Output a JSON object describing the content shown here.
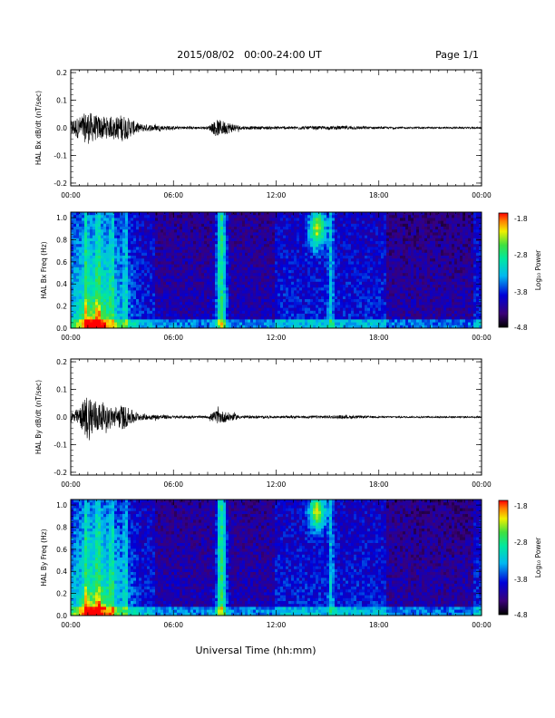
{
  "header": {
    "title": "2015/08/02   00:00-24:00 UT",
    "page": "Page 1/1"
  },
  "x_axis_label": "Universal Time (hh:mm)",
  "colorbar": {
    "label": "Log₁₀ Power",
    "ticks": [
      "-1.8",
      "-2.8",
      "-3.8",
      "-4.8"
    ]
  },
  "chart_data": [
    {
      "type": "line",
      "ylabel": "HAL Bx dB/dt (nT/sec)",
      "xlim": [
        "00:00",
        "24:00"
      ],
      "ylim": [
        -0.21,
        0.21
      ],
      "yticks": [
        "0.2",
        "0.1",
        "0.0",
        "-0.1",
        "-0.2"
      ],
      "xticks": [
        "00:00",
        "06:00",
        "12:00",
        "18:00",
        "00:00"
      ],
      "amplitude_envelope_hours": [
        0,
        0.5,
        1.0,
        1.5,
        2.0,
        2.5,
        3.0,
        4.0,
        6.0,
        8.0,
        8.5,
        9.0,
        10.0,
        12.0,
        14.0,
        15.0,
        16.0,
        18.0,
        20.0,
        22.0,
        24.0
      ],
      "amplitude_envelope_nT_per_s": [
        0.03,
        0.04,
        0.06,
        0.045,
        0.04,
        0.035,
        0.05,
        0.015,
        0.006,
        0.004,
        0.03,
        0.025,
        0.006,
        0.005,
        0.006,
        0.006,
        0.007,
        0.004,
        0.003,
        0.003,
        0.003
      ]
    },
    {
      "type": "heatmap",
      "ylabel": "HAL Bx Freq (Hz)",
      "xlim": [
        "00:00",
        "24:00"
      ],
      "ylim": [
        0,
        1.05
      ],
      "yticks": [
        "1.0",
        "0.8",
        "0.6",
        "0.4",
        "0.2",
        "0.0"
      ],
      "xticks": [
        "00:00",
        "06:00",
        "12:00",
        "18:00",
        "00:00"
      ],
      "zlim": [
        -4.8,
        -1.8
      ],
      "z_label": "Log₁₀ Power"
    },
    {
      "type": "line",
      "ylabel": "HAL By dB/dt (nT/sec)",
      "xlim": [
        "00:00",
        "24:00"
      ],
      "ylim": [
        -0.21,
        0.21
      ],
      "yticks": [
        "0.2",
        "0.1",
        "0.0",
        "-0.1",
        "-0.2"
      ],
      "xticks": [
        "00:00",
        "06:00",
        "12:00",
        "18:00",
        "00:00"
      ],
      "amplitude_envelope_hours": [
        0,
        0.5,
        1.0,
        1.5,
        2.0,
        2.5,
        3.0,
        4.0,
        6.0,
        8.0,
        8.5,
        9.0,
        10.0,
        12.0,
        14.0,
        15.0,
        16.0,
        18.0,
        20.0,
        22.0,
        24.0
      ],
      "amplitude_envelope_nT_per_s": [
        0.02,
        0.03,
        0.09,
        0.06,
        0.04,
        0.035,
        0.045,
        0.012,
        0.005,
        0.004,
        0.025,
        0.02,
        0.005,
        0.004,
        0.005,
        0.005,
        0.006,
        0.003,
        0.003,
        0.003,
        0.003
      ]
    },
    {
      "type": "heatmap",
      "ylabel": "HAL By Freq (Hz)",
      "xlim": [
        "00:00",
        "24:00"
      ],
      "ylim": [
        0,
        1.05
      ],
      "yticks": [
        "1.0",
        "0.8",
        "0.6",
        "0.4",
        "0.2",
        "0.0"
      ],
      "xticks": [
        "00:00",
        "06:00",
        "12:00",
        "18:00",
        "00:00"
      ],
      "zlim": [
        -4.8,
        -1.8
      ],
      "z_label": "Log₁₀ Power"
    }
  ]
}
